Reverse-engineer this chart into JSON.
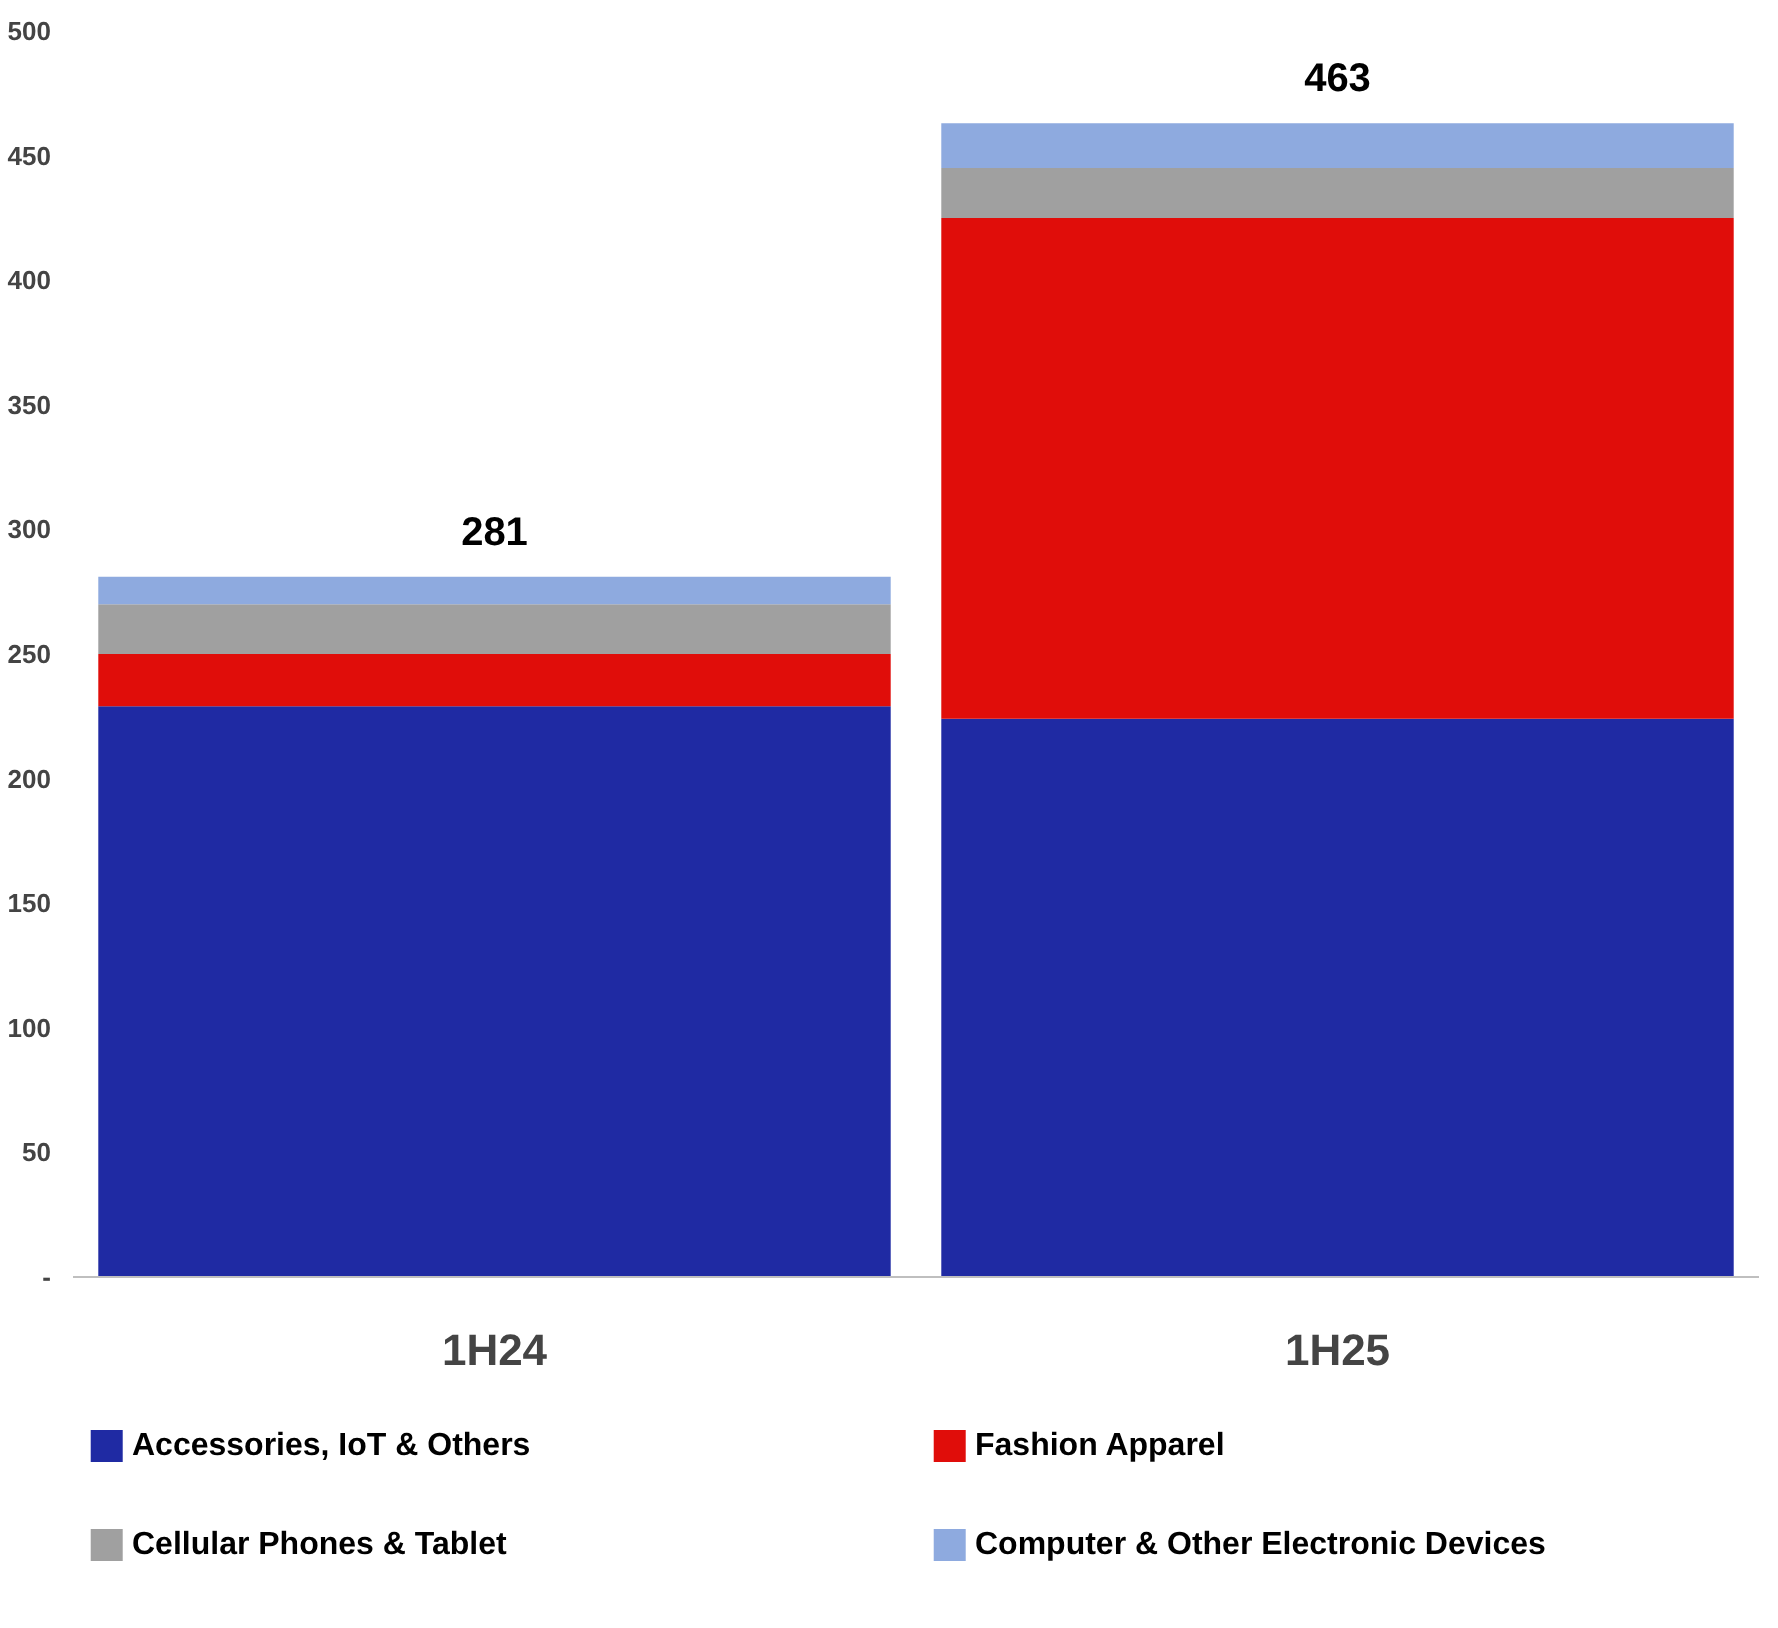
{
  "chart_data": {
    "type": "bar",
    "stacked": true,
    "categories": [
      "1H24",
      "1H25"
    ],
    "series": [
      {
        "name": "Accessories, IoT & Others",
        "color": "#1f2aa3",
        "values": [
          229,
          224
        ]
      },
      {
        "name": "Fashion Apparel",
        "color": "#e00d0a",
        "values": [
          21,
          201
        ]
      },
      {
        "name": "Cellular Phones & Tablet",
        "color": "#a0a0a0",
        "values": [
          20,
          20
        ]
      },
      {
        "name": "Computer & Other Electronic Devices",
        "color": "#8eaadf",
        "values": [
          11,
          18
        ]
      }
    ],
    "totals": [
      "281",
      "463"
    ],
    "ylim": [
      0,
      500
    ],
    "yticks": [
      {
        "value": 0,
        "label": "-"
      },
      50,
      100,
      150,
      200,
      250,
      300,
      350,
      400,
      450,
      500
    ],
    "grid": false,
    "legend": "bottom"
  }
}
